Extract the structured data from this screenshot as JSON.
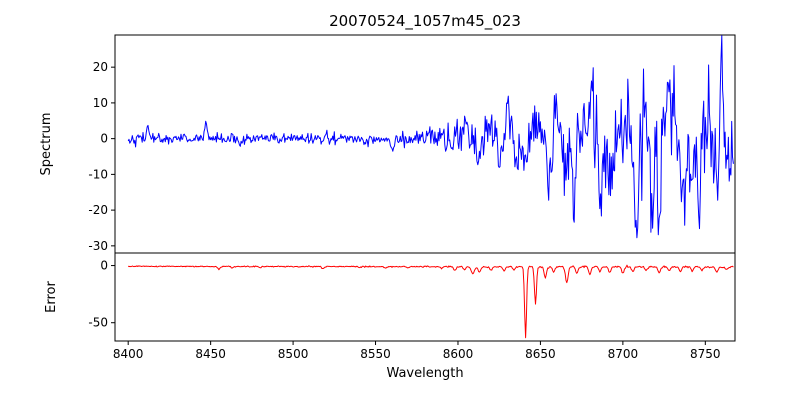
{
  "title": "20070524_1057m45_023",
  "chart_data": {
    "type": "line",
    "title": "20070524_1057m45_023",
    "xlabel": "Wavelength",
    "grid": false,
    "legend": "none",
    "x": {
      "min": 8392,
      "max": 8768,
      "data_min": 8400,
      "data_max": 8767,
      "step": 0.5,
      "ticks": [
        8400,
        8450,
        8500,
        8550,
        8600,
        8650,
        8700,
        8750
      ]
    },
    "seed": 42,
    "panels": [
      {
        "name": "spectrum",
        "ylabel": "Spectrum",
        "color": "#0000ff",
        "ylim": [
          -32,
          29
        ],
        "yticks": [
          -30,
          -20,
          -10,
          0,
          10,
          20
        ],
        "bias": [
          [
            8400,
            0
          ],
          [
            8640,
            0
          ],
          [
            8690,
            -1.5
          ],
          [
            8770,
            -1
          ]
        ],
        "noise_sigma": [
          [
            8400,
            0.7
          ],
          [
            8545,
            0.75
          ],
          [
            8585,
            1.3
          ],
          [
            8615,
            2.5
          ],
          [
            8645,
            4.5
          ],
          [
            8675,
            6
          ],
          [
            8770,
            7.2
          ]
        ],
        "features": [
          [
            8412,
            4,
            0.7
          ],
          [
            8447,
            5,
            0.7
          ],
          [
            8468,
            -2.5,
            0.8
          ],
          [
            8520,
            2.2,
            0.8
          ],
          [
            8544,
            -2,
            0.8
          ],
          [
            8560,
            -2.5,
            0.8
          ],
          [
            8582,
            3,
            0.9
          ],
          [
            8596,
            -3,
            0.9
          ],
          [
            8605,
            4.5,
            1
          ],
          [
            8612,
            -5,
            1
          ],
          [
            8618,
            5,
            1
          ],
          [
            8625,
            -6,
            1
          ],
          [
            8630,
            9,
            1.1
          ],
          [
            8636,
            -8,
            1
          ],
          [
            8641,
            -10,
            1
          ],
          [
            8645,
            7,
            1
          ],
          [
            8651,
            8,
            1
          ],
          [
            8655,
            -17,
            1
          ],
          [
            8660,
            9,
            1
          ],
          [
            8665,
            -12,
            1
          ],
          [
            8670,
            -14,
            1.1
          ],
          [
            8676,
            10,
            1
          ],
          [
            8681,
            12,
            1
          ],
          [
            8687,
            -15,
            1
          ],
          [
            8693,
            -16,
            1
          ],
          [
            8698,
            12,
            1
          ],
          [
            8703,
            13,
            1
          ],
          [
            8708,
            -30,
            0.9
          ],
          [
            8713,
            9,
            1
          ],
          [
            8718,
            -18,
            1
          ],
          [
            8722,
            -20,
            1.1
          ],
          [
            8727,
            10,
            1
          ],
          [
            8731,
            11,
            1
          ],
          [
            8737,
            -21,
            1
          ],
          [
            8742,
            -15,
            1
          ],
          [
            8746,
            -18,
            1
          ],
          [
            8752,
            9,
            1
          ],
          [
            8757,
            -13,
            1
          ],
          [
            8760,
            25.5,
            0.7
          ],
          [
            8764,
            -12,
            1
          ]
        ]
      },
      {
        "name": "error",
        "ylabel": "Error",
        "color": "#ff0000",
        "ylim": [
          -66,
          11
        ],
        "yticks": [
          -50,
          0
        ],
        "bias": [
          [
            8400,
            -0.7
          ],
          [
            8770,
            -1.2
          ]
        ],
        "noise_sigma": [
          [
            8400,
            0.2
          ],
          [
            8600,
            0.3
          ],
          [
            8770,
            0.5
          ]
        ],
        "features": [
          [
            8455,
            -2.5,
            0.7
          ],
          [
            8463,
            -1.5,
            0.7
          ],
          [
            8480,
            -1,
            0.7
          ],
          [
            8518,
            -2,
            0.7
          ],
          [
            8540,
            -1,
            0.7
          ],
          [
            8556,
            -1.5,
            0.7
          ],
          [
            8570,
            -1,
            0.7
          ],
          [
            8590,
            -1.5,
            0.7
          ],
          [
            8598,
            -3,
            0.8
          ],
          [
            8604,
            -2.5,
            0.7
          ],
          [
            8609,
            -6.5,
            0.9
          ],
          [
            8613,
            -5,
            0.8
          ],
          [
            8620,
            -3,
            0.8
          ],
          [
            8628,
            -4,
            0.7
          ],
          [
            8634,
            -3,
            0.7
          ],
          [
            8641,
            -62,
            0.6
          ],
          [
            8647,
            -33,
            0.6
          ],
          [
            8653,
            -10,
            0.7
          ],
          [
            8658,
            -5,
            0.7
          ],
          [
            8666,
            -14,
            0.8
          ],
          [
            8672,
            -6,
            0.7
          ],
          [
            8680,
            -7,
            0.7
          ],
          [
            8686,
            -4,
            0.7
          ],
          [
            8692,
            -5,
            0.7
          ],
          [
            8700,
            -6,
            0.7
          ],
          [
            8706,
            -4,
            0.7
          ],
          [
            8714,
            -3.5,
            0.7
          ],
          [
            8722,
            -5,
            0.7
          ],
          [
            8728,
            -3,
            0.7
          ],
          [
            8735,
            -4,
            0.7
          ],
          [
            8742,
            -3.5,
            0.7
          ],
          [
            8748,
            -3,
            0.7
          ],
          [
            8757,
            -5,
            0.7
          ],
          [
            8763,
            -3,
            0.7
          ]
        ]
      }
    ]
  }
}
